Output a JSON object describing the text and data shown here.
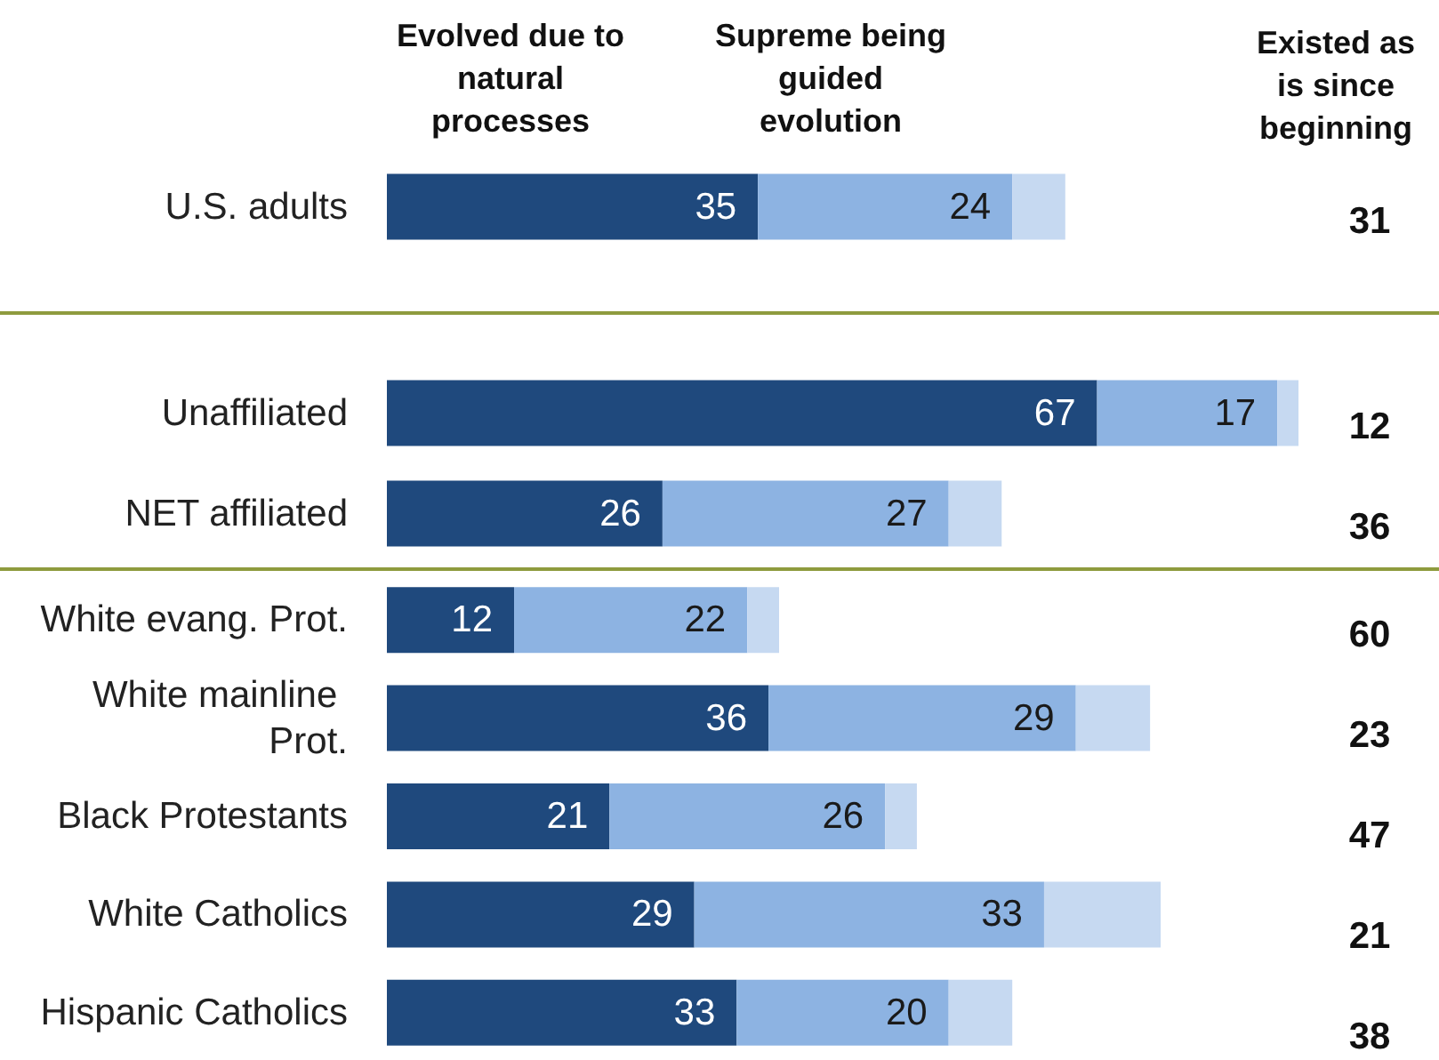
{
  "chart_data": [
    {
      "type": "bar",
      "orientation": "horizontal",
      "stacked": true,
      "tick_labels": "y",
      "categories": [
        "U.S. adults"
      ],
      "series": [
        {
          "name": "Evolved due to natural processes",
          "color": "#1f497d",
          "values": [
            35
          ],
          "value_labels": [
            "35"
          ]
        },
        {
          "name": "Supreme being guided evolution",
          "color": "#8db3e2",
          "values": [
            24
          ],
          "value_labels": [
            "24"
          ]
        },
        {
          "color": "#c6d9f1",
          "values": [
            5
          ]
        }
      ]
    },
    {
      "type": "bar",
      "orientation": "horizontal",
      "stacked": true,
      "tick_labels": "y",
      "categories": [
        "Unaffiliated",
        "NET affiliated"
      ],
      "series": [
        {
          "color": "#1f497d",
          "values": [
            67,
            26
          ],
          "value_labels": [
            "67",
            "26"
          ]
        },
        {
          "color": "#8db3e2",
          "values": [
            17,
            27
          ],
          "value_labels": [
            "17",
            "27"
          ]
        },
        {
          "color": "#c6d9f1",
          "values": [
            2,
            5
          ]
        }
      ]
    },
    {
      "type": "bar",
      "orientation": "horizontal",
      "stacked": true,
      "tick_labels": "y",
      "categories": [
        "White evang. Prot.",
        "White mainline Prot.",
        "Black Protestants",
        "White Catholics",
        "Hispanic Catholics"
      ],
      "series": [
        {
          "color": "#1f497d",
          "values": [
            12,
            36,
            21,
            29,
            33
          ],
          "value_labels": [
            "12",
            "36",
            "21",
            "29",
            "33"
          ]
        },
        {
          "color": "#8db3e2",
          "values": [
            22,
            29,
            26,
            33,
            20
          ],
          "value_labels": [
            "22",
            "29",
            "26",
            "33",
            "20"
          ]
        },
        {
          "color": "#c6d9f1",
          "values": [
            3,
            7,
            3,
            11,
            6
          ]
        }
      ]
    },
    {
      "type": "other",
      "title": "Existed as is since beginning",
      "values": [
        31,
        12,
        36,
        60,
        23,
        47,
        21,
        38
      ],
      "data_labels": true
    }
  ]
}
